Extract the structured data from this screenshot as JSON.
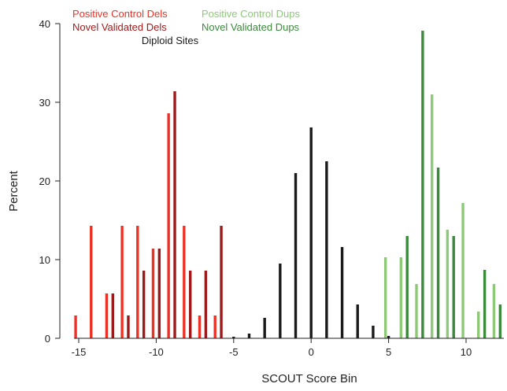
{
  "chart_data": {
    "type": "bar",
    "xlabel": "SCOUT Score Bin",
    "ylabel": "Percent",
    "xlim": [
      -15.5,
      12.5
    ],
    "ylim": [
      0,
      40
    ],
    "x_ticks": [
      -15,
      -10,
      -5,
      0,
      5,
      10
    ],
    "y_ticks": [
      0,
      10,
      20,
      30,
      40
    ],
    "legend": [
      {
        "label": "Positive Control Dels",
        "color": "#ee3124"
      },
      {
        "label": "Positive Control Dups",
        "color": "#8dc977"
      },
      {
        "label": "Novel Validated Dels",
        "color": "#9e1a1a"
      },
      {
        "label": "Novel Validated Dups",
        "color": "#3c8a3c"
      },
      {
        "label": "Diploid Sites",
        "color": "#1a1a1a"
      }
    ],
    "legend_placement": "top-left",
    "grid": false,
    "series": [
      {
        "name": "Positive Control Dels",
        "color": "#ee3124",
        "points": [
          [
            -15.2,
            2.9
          ],
          [
            -14.2,
            14.3
          ],
          [
            -13.2,
            5.7
          ],
          [
            -12.2,
            14.3
          ],
          [
            -11.2,
            14.3
          ],
          [
            -10.2,
            11.4
          ],
          [
            -9.2,
            28.6
          ],
          [
            -8.2,
            14.3
          ],
          [
            -7.2,
            2.9
          ],
          [
            -6.2,
            2.9
          ]
        ]
      },
      {
        "name": "Novel Validated Dels",
        "color": "#9e1a1a",
        "points": [
          [
            -12.8,
            5.7
          ],
          [
            -11.8,
            2.9
          ],
          [
            -10.8,
            8.6
          ],
          [
            -9.8,
            11.4
          ],
          [
            -8.8,
            31.4
          ],
          [
            -7.8,
            8.6
          ],
          [
            -6.8,
            8.6
          ],
          [
            -5.8,
            14.3
          ]
        ]
      },
      {
        "name": "Diploid Sites",
        "color": "#1a1a1a",
        "points": [
          [
            -5,
            0.2
          ],
          [
            -4,
            0.6
          ],
          [
            -3,
            2.6
          ],
          [
            -2,
            9.5
          ],
          [
            -1,
            21.0
          ],
          [
            0,
            26.8
          ],
          [
            1,
            22.5
          ],
          [
            2,
            11.6
          ],
          [
            3,
            4.3
          ],
          [
            4,
            1.6
          ],
          [
            5,
            0.3
          ]
        ]
      },
      {
        "name": "Positive Control Dups",
        "color": "#8dc977",
        "points": [
          [
            4.8,
            10.3
          ],
          [
            5.8,
            10.3
          ],
          [
            6.8,
            6.9
          ],
          [
            7.8,
            31.0
          ],
          [
            8.8,
            13.8
          ],
          [
            9.8,
            17.2
          ],
          [
            10.8,
            3.4
          ],
          [
            11.8,
            6.9
          ]
        ]
      },
      {
        "name": "Novel Validated Dups",
        "color": "#3c8a3c",
        "points": [
          [
            6.2,
            13.0
          ],
          [
            7.2,
            39.1
          ],
          [
            8.2,
            21.7
          ],
          [
            9.2,
            13.0
          ],
          [
            11.2,
            8.7
          ],
          [
            12.2,
            4.3
          ]
        ]
      }
    ]
  }
}
